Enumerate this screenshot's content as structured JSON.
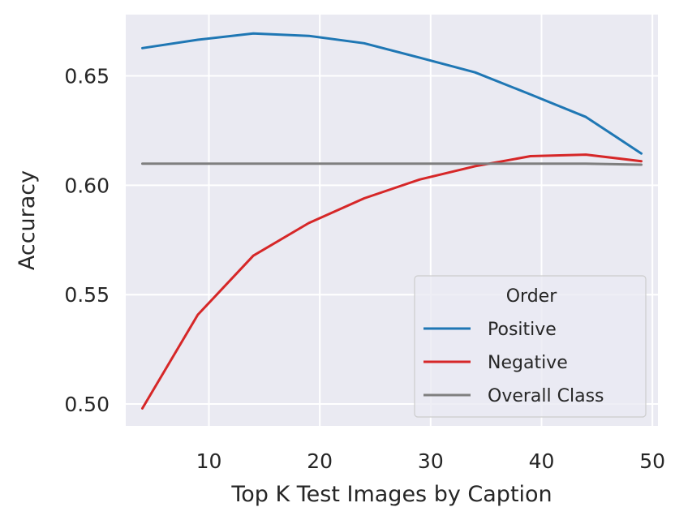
{
  "chart_data": {
    "type": "line",
    "title": "",
    "xlabel": "Top K Test Images by Caption",
    "ylabel": "Accuracy",
    "xlim": [
      2.5,
      50.5
    ],
    "ylim": [
      0.49,
      0.678
    ],
    "xticks": [
      10,
      20,
      30,
      40,
      50
    ],
    "xtick_labels": [
      "10",
      "20",
      "30",
      "40",
      "50"
    ],
    "yticks": [
      0.5,
      0.55,
      0.6,
      0.65
    ],
    "ytick_labels": [
      "0.50",
      "0.55",
      "0.60",
      "0.65"
    ],
    "grid": true,
    "legend_placement": "lower-right",
    "legend_title": "Order",
    "x": [
      4,
      9,
      14,
      19,
      24,
      29,
      34,
      39,
      44,
      49
    ],
    "series": [
      {
        "name": "Positive",
        "color": "#1f77b4",
        "values": [
          0.6627,
          0.6665,
          0.6694,
          0.6683,
          0.6649,
          0.6583,
          0.6516,
          0.6415,
          0.6312,
          0.6145
        ]
      },
      {
        "name": "Negative",
        "color": "#d62728",
        "values": [
          0.498,
          0.5408,
          0.5678,
          0.5827,
          0.594,
          0.6026,
          0.6087,
          0.6133,
          0.614,
          0.611
        ]
      },
      {
        "name": "Overall Class",
        "color": "#7f7f7f",
        "values": [
          0.6099,
          0.6099,
          0.6099,
          0.6099,
          0.6099,
          0.6099,
          0.6099,
          0.6099,
          0.6099,
          0.6094
        ]
      }
    ]
  }
}
